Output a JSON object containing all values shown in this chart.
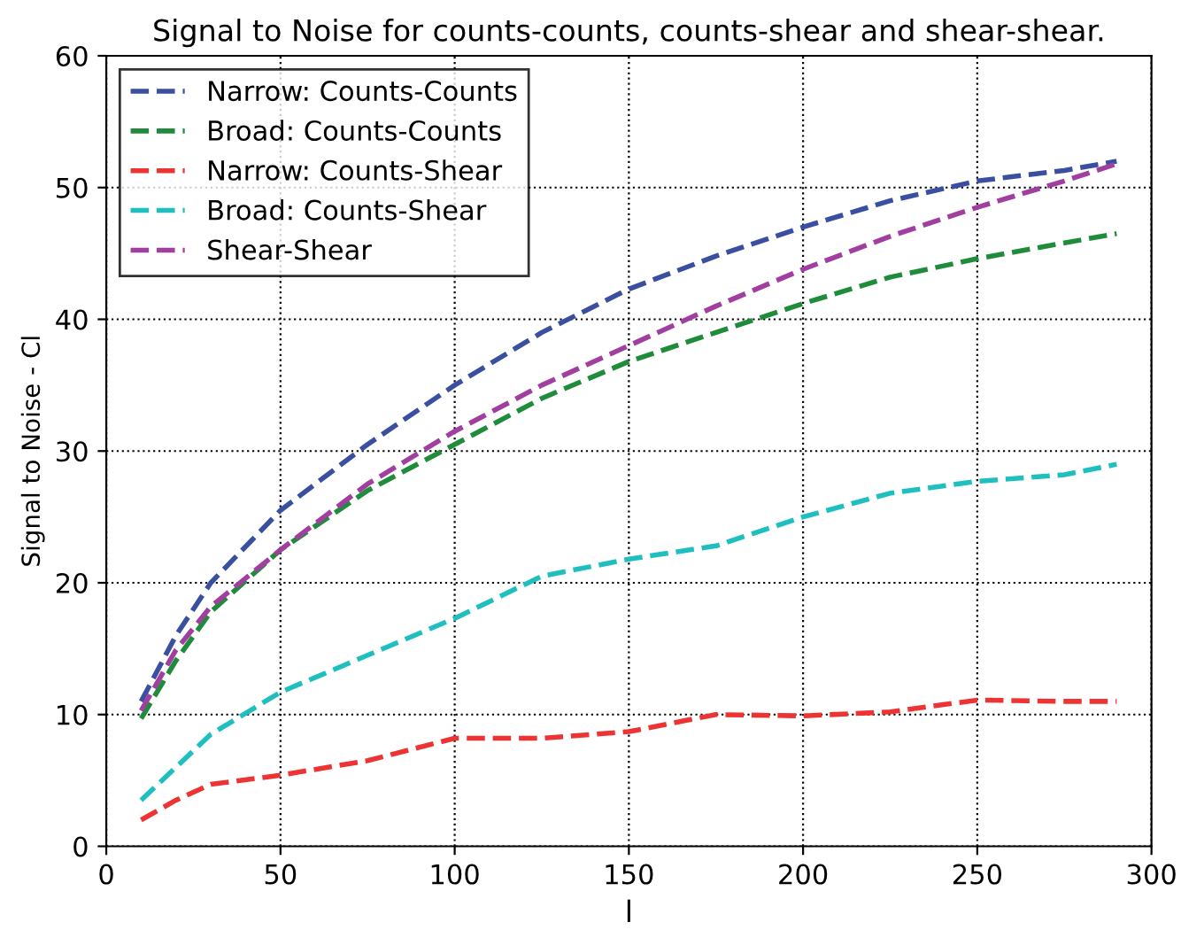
{
  "chart_data": {
    "type": "line",
    "title": "Signal to Noise for counts-counts, counts-shear and shear-shear.",
    "xlabel": "l",
    "ylabel": "Signal to Noise - Cl",
    "x": [
      10,
      20,
      30,
      50,
      75,
      100,
      125,
      150,
      175,
      200,
      225,
      250,
      275,
      290
    ],
    "series": [
      {
        "name": "Narrow: Counts-Counts",
        "color": "#3a4fa0",
        "values": [
          11,
          16,
          20,
          25.5,
          30.5,
          35,
          39,
          42.3,
          44.8,
          47,
          49,
          50.5,
          51.3,
          52
        ]
      },
      {
        "name": "Broad: Counts-Counts",
        "color": "#1f8c3b",
        "values": [
          9.7,
          14.1,
          17.8,
          22.5,
          27,
          30.5,
          34,
          36.8,
          39,
          41.2,
          43.2,
          44.6,
          45.8,
          46.5
        ]
      },
      {
        "name": "Narrow: Counts-Shear",
        "color": "#ee3333",
        "values": [
          2,
          3.5,
          4.7,
          5.4,
          6.5,
          8.2,
          8.2,
          8.7,
          10,
          9.9,
          10.2,
          11.1,
          11,
          11
        ]
      },
      {
        "name": "Broad: Counts-Shear",
        "color": "#1fbfbf",
        "values": [
          3.5,
          6,
          8.5,
          11.7,
          14.5,
          17.3,
          20.5,
          21.8,
          22.8,
          25,
          26.8,
          27.7,
          28.2,
          29
        ]
      },
      {
        "name": "Shear-Shear",
        "color": "#a03fa0",
        "values": [
          10.3,
          14.9,
          18.2,
          22.5,
          27.5,
          31.5,
          35,
          38,
          41,
          43.8,
          46.3,
          48.5,
          50.5,
          51.8
        ]
      }
    ],
    "xlim": [
      0,
      300
    ],
    "xticks": [
      0,
      50,
      100,
      150,
      200,
      250,
      300
    ],
    "ylim": [
      0,
      60
    ],
    "yticks": [
      0,
      10,
      20,
      30,
      40,
      50,
      60
    ],
    "grid": true,
    "legend": "top left",
    "line_style": "dashed",
    "marker": "none"
  }
}
